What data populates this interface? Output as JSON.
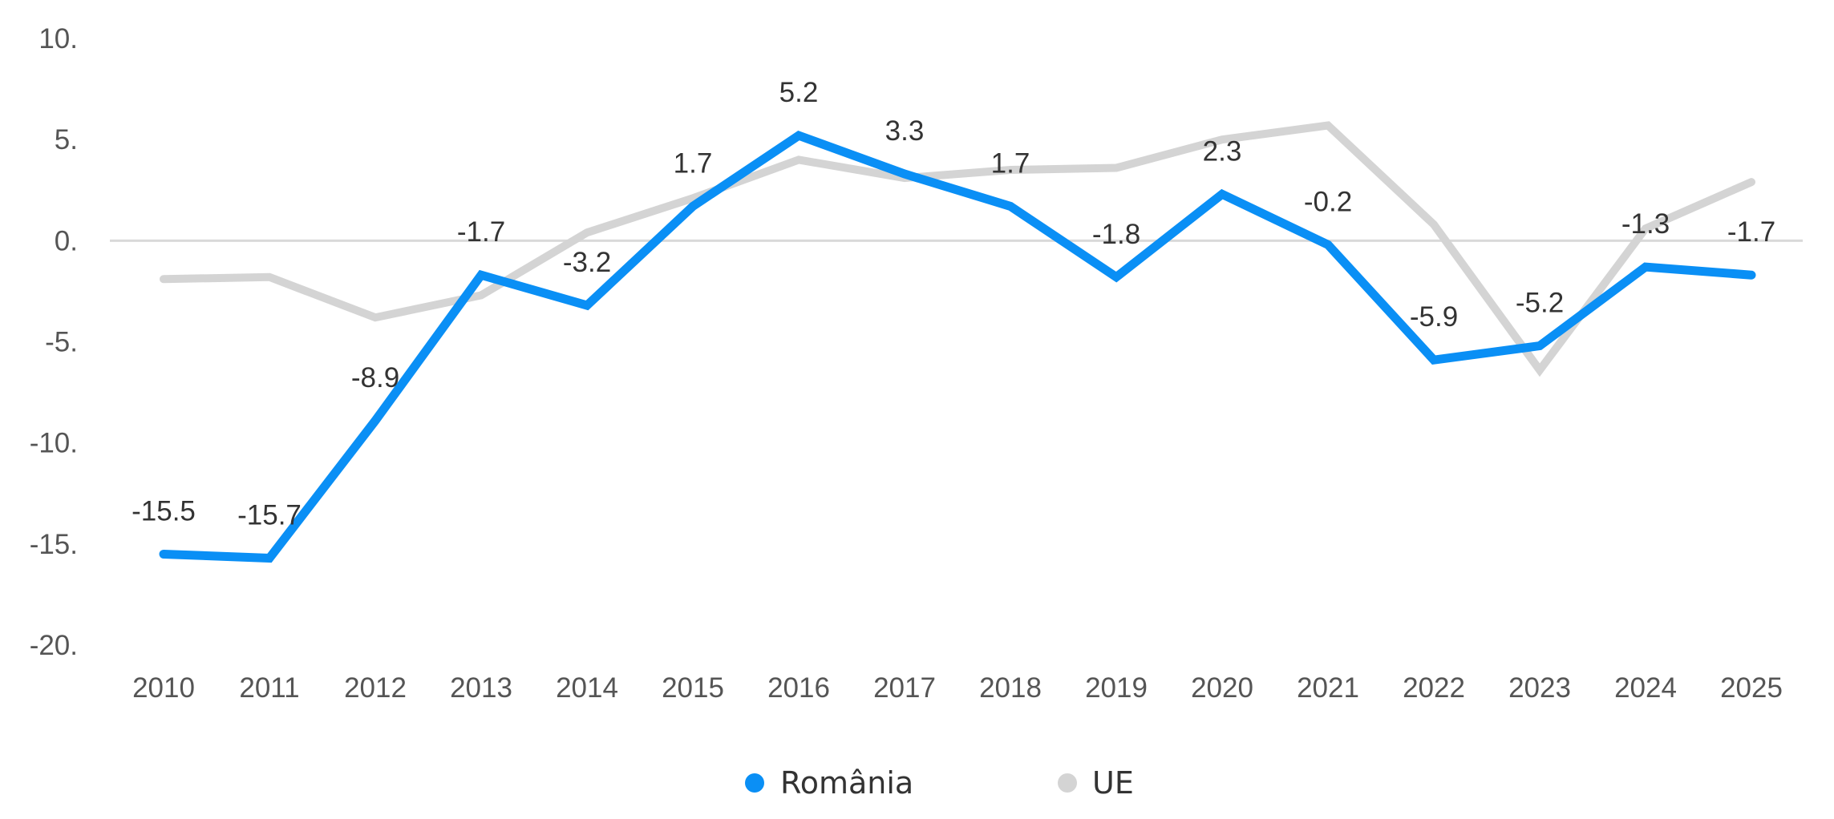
{
  "chart_data": {
    "type": "line",
    "title": "",
    "xlabel": "",
    "ylabel": "",
    "ylim": [
      -20,
      10
    ],
    "yticks": [
      10,
      5,
      0,
      -5,
      -10,
      -15,
      -20
    ],
    "ytick_labels": [
      "10.",
      "5.",
      "0.",
      "-5.",
      "-10.",
      "-15.",
      "-20."
    ],
    "categories": [
      "2010",
      "2011",
      "2012",
      "2013",
      "2014",
      "2015",
      "2016",
      "2017",
      "2018",
      "2019",
      "2020",
      "2021",
      "2022",
      "2023",
      "2024",
      "2025"
    ],
    "grid": false,
    "zero_line": true,
    "legend_position": "bottom-center",
    "series": [
      {
        "name": "România",
        "color": "#0a8ff5",
        "values": [
          -15.5,
          -15.7,
          -8.9,
          -1.7,
          -3.2,
          1.7,
          5.2,
          3.3,
          1.7,
          -1.8,
          2.3,
          -0.2,
          -5.9,
          -5.2,
          -1.3,
          -1.7
        ],
        "data_labels": [
          "-15.5",
          "-15.7",
          "-8.9",
          "-1.7",
          "-3.2",
          "1.7",
          "5.2",
          "3.3",
          "1.7",
          "-1.8",
          "2.3",
          "-0.2",
          "-5.9",
          "-5.2",
          "-1.3",
          "-1.7"
        ]
      },
      {
        "name": "UE",
        "color": "#d4d4d4",
        "values": [
          -1.9,
          -1.8,
          -3.8,
          -2.7,
          0.4,
          2.1,
          4.0,
          3.1,
          3.5,
          3.6,
          5.0,
          5.7,
          0.8,
          -6.4,
          0.6,
          2.9
        ],
        "data_labels": []
      }
    ]
  },
  "legend": {
    "items": [
      {
        "label": "România",
        "color": "#0a8ff5"
      },
      {
        "label": "UE",
        "color": "#d4d4d4"
      }
    ]
  }
}
